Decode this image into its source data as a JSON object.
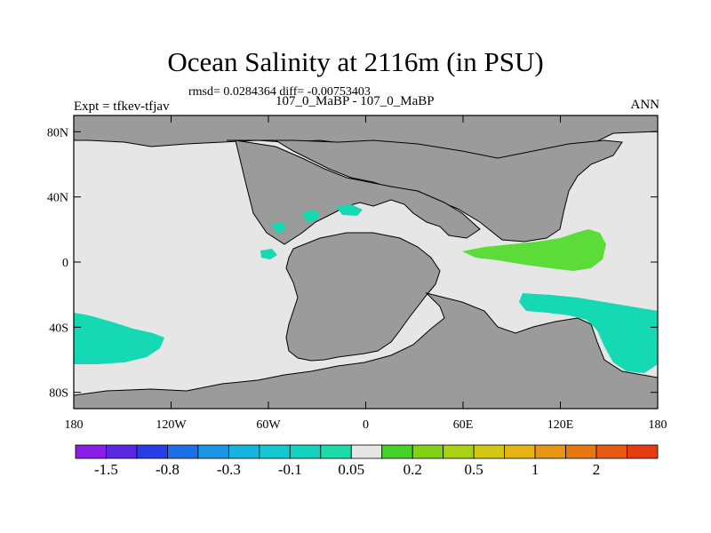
{
  "title": "Ocean Salinity at 2116m (in PSU)",
  "stats": "rmsd= 0.0284364 diff= -0.00753403",
  "experiment": "Expt = tfkev-tfjav",
  "period": "107_0_MaBP - 107_0_MaBP",
  "season": "ANN",
  "map": {
    "lon_range": [
      -180,
      180
    ],
    "lat_range": [
      -90,
      90
    ],
    "x_ticks": [
      {
        "value": -180,
        "label": "180"
      },
      {
        "value": -120,
        "label": "120W"
      },
      {
        "value": -60,
        "label": "60W"
      },
      {
        "value": 0,
        "label": "0"
      },
      {
        "value": 60,
        "label": "60E"
      },
      {
        "value": 120,
        "label": "120E"
      },
      {
        "value": 180,
        "label": "180"
      }
    ],
    "y_ticks": [
      {
        "value": 80,
        "label": "80N"
      },
      {
        "value": 40,
        "label": "40N"
      },
      {
        "value": 0,
        "label": "0"
      },
      {
        "value": -40,
        "label": "40S"
      },
      {
        "value": -80,
        "label": "80S"
      }
    ],
    "colors": {
      "land": "#9b9b9b",
      "ocean_near_zero": "#e6e6e6",
      "teal": "#15d9b3",
      "green": "#5cdc38"
    }
  },
  "colorbar": {
    "colors": [
      "#8a1ee6",
      "#5a28e0",
      "#2a3ce6",
      "#1e6ee6",
      "#1e96e6",
      "#14b4dc",
      "#14c8d2",
      "#14d2be",
      "#1edcaa",
      "#e6e6e6",
      "#46d228",
      "#82d214",
      "#aad214",
      "#d2c814",
      "#e6b414",
      "#e69614",
      "#e67814",
      "#e65a14",
      "#e63c14"
    ],
    "labels": [
      {
        "after_box": 1,
        "text": "-1.5"
      },
      {
        "after_box": 3,
        "text": "-0.8"
      },
      {
        "after_box": 5,
        "text": "-0.3"
      },
      {
        "after_box": 7,
        "text": "-0.1"
      },
      {
        "after_box": 9,
        "text": "0.05"
      },
      {
        "after_box": 11,
        "text": "0.2"
      },
      {
        "after_box": 13,
        "text": "0.5"
      },
      {
        "after_box": 15,
        "text": "1"
      },
      {
        "after_box": 17,
        "text": "2"
      }
    ]
  }
}
